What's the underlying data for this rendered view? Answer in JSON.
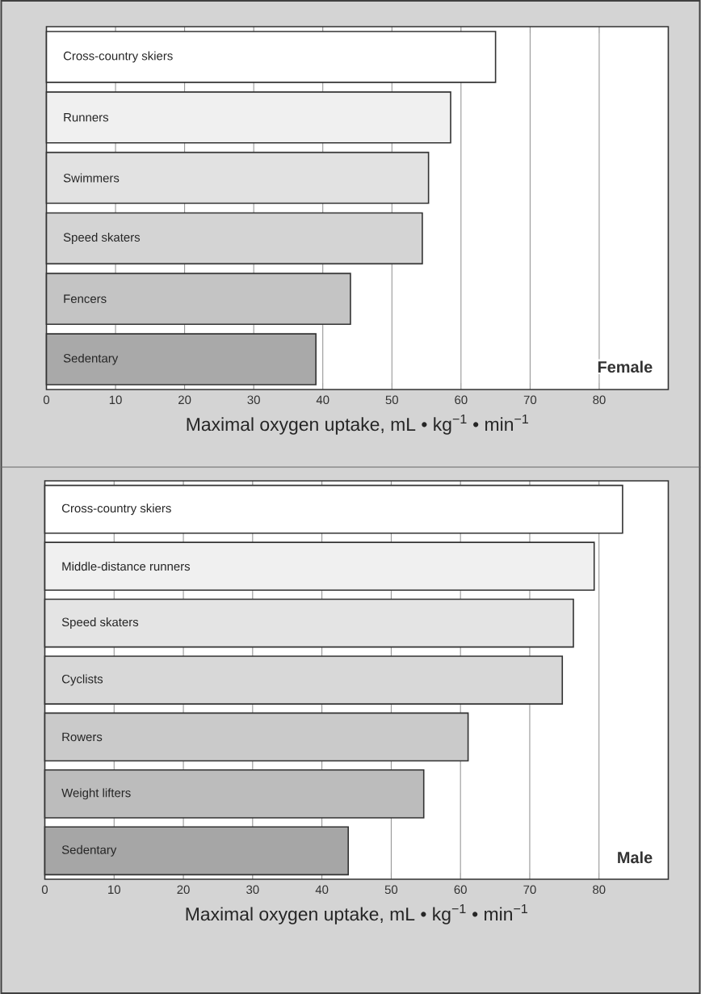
{
  "chart_data": [
    {
      "type": "bar",
      "orientation": "horizontal",
      "categories": [
        "Cross-country skiers",
        "Runners",
        "Swimmers",
        "Speed skaters",
        "Fencers",
        "Sedentary"
      ],
      "values": [
        65,
        58.5,
        55.3,
        54.4,
        44,
        39
      ],
      "colors": [
        "#ffffff",
        "#f0f0f0",
        "#e2e2e2",
        "#d4d4d4",
        "#c4c4c4",
        "#a9a9a9"
      ],
      "xlim": [
        0,
        90
      ],
      "xticks": [
        0,
        10,
        20,
        30,
        40,
        50,
        60,
        70,
        80
      ],
      "grid": "x",
      "xlabel": "Maximal oxygen uptake, mL • kg$^{−1}$ • min$^{−1}$",
      "annotations": [
        "Female"
      ]
    },
    {
      "type": "bar",
      "orientation": "horizontal",
      "categories": [
        "Cross-country skiers",
        "Middle-distance runners",
        "Speed skaters",
        "Cyclists",
        "Rowers",
        "Weight lifters",
        "Sedentary"
      ],
      "values": [
        83.4,
        79.3,
        76.3,
        74.7,
        61.1,
        54.7,
        43.8
      ],
      "colors": [
        "#ffffff",
        "#f0f0f0",
        "#e4e4e4",
        "#d8d8d8",
        "#cacaca",
        "#bcbcbc",
        "#a6a6a6"
      ],
      "xlim": [
        0,
        90
      ],
      "xticks": [
        0,
        10,
        20,
        30,
        40,
        50,
        60,
        70,
        80
      ],
      "grid": "x",
      "xlabel": "Maximal oxygen uptake, mL • kg$^{−1}$ • min$^{−1}$",
      "annotations": [
        "Male"
      ]
    }
  ]
}
